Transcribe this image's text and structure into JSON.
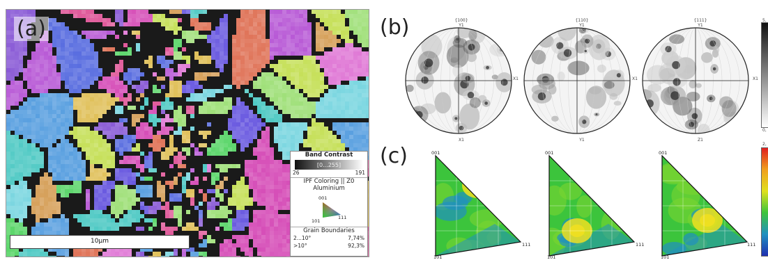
{
  "panel_a": {
    "label": "(a)",
    "scale_bar": "10µm",
    "legend": {
      "band_contrast_title": "Band Contrast",
      "band_contrast_range": "[0...255]",
      "band_contrast_min": "26",
      "band_contrast_max": "191",
      "ipf_title": "IPF Coloring || Z0",
      "ipf_phase": "Aluminium",
      "ipf_001": "001",
      "ipf_101": "101",
      "ipf_111": "111",
      "gb_title": "Grain Boundaries",
      "gb_rows": [
        {
          "label": "2...10°",
          "value": "7,74%"
        },
        {
          "label": ">10°",
          "value": "92,3%"
        }
      ]
    }
  },
  "panel_b": {
    "label": "(b)",
    "pole_figures": [
      {
        "top": "{100}",
        "top_axis": "Y1",
        "right_axis": "X1",
        "bottom": "X1"
      },
      {
        "top": "{110}",
        "top_axis": "Y1",
        "right_axis": "X1",
        "bottom": "Y1"
      },
      {
        "top": "{111}",
        "top_axis": "Y1",
        "right_axis": "X1",
        "bottom": "Z1"
      }
    ],
    "colorbar_top": "5,",
    "colorbar_bottom": "0,"
  },
  "panel_c": {
    "label": "(c)",
    "inverse_pole_figures": [
      {
        "corner_001": "001",
        "corner_111": "111",
        "corner_101": "101"
      },
      {
        "corner_001": "001",
        "corner_111": "111",
        "corner_101": "101"
      },
      {
        "corner_001": "001",
        "corner_111": "111",
        "corner_101": "101"
      }
    ],
    "colorbar_top": "2,"
  },
  "colors": {
    "grain_palette": [
      "#d64fb8",
      "#8a5bd6",
      "#5aa0e0",
      "#4fc9c4",
      "#5bd66a",
      "#c6e05a",
      "#e0c05a",
      "#e0755a",
      "#b85ad6",
      "#5a6ee0",
      "#e05a9a",
      "#7ad6e0",
      "#a0e07a",
      "#d6a05a",
      "#6a5ae0",
      "#e07ad6"
    ],
    "ipf_low": "#2060c0",
    "ipf_mid": "#3cc43c",
    "ipf_high": "#e02020"
  }
}
